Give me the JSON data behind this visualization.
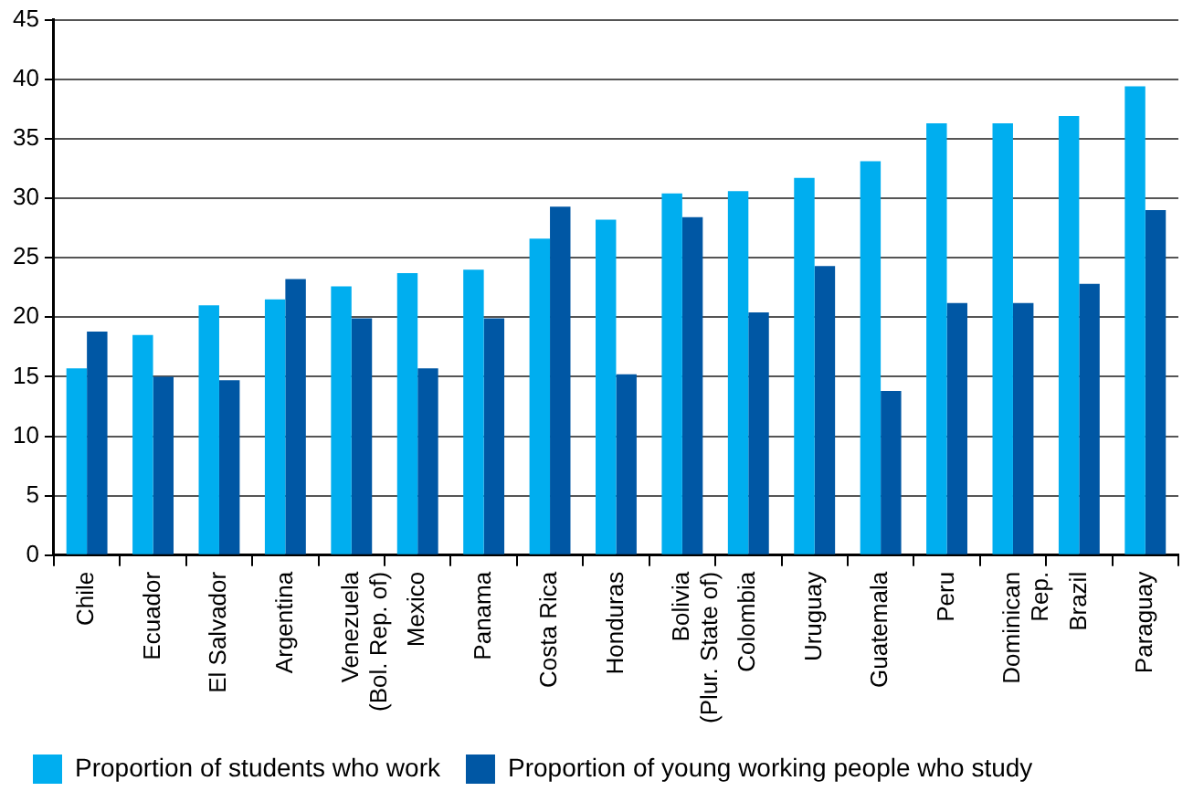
{
  "chart_data": {
    "type": "bar",
    "categories": [
      "Chile",
      "Ecuador",
      "El Salvador",
      "Argentina",
      "Venezuela\n(Bol. Rep. of)",
      "Mexico",
      "Panama",
      "Costa Rica",
      "Honduras",
      "Bolivia\n(Plur. State of)",
      "Colombia",
      "Uruguay",
      "Guatemala",
      "Peru",
      "Dominican\nRep.",
      "Brazil",
      "Paraguay"
    ],
    "series": [
      {
        "name": "Proportion of students who work",
        "color": "#00aeef",
        "values": [
          15.7,
          18.5,
          21.0,
          21.5,
          22.6,
          23.7,
          24.0,
          26.6,
          28.2,
          30.4,
          30.6,
          31.7,
          33.1,
          36.3,
          36.3,
          36.9,
          39.4
        ]
      },
      {
        "name": "Proportion of young working people who study",
        "color": "#0057a4",
        "values": [
          18.8,
          15.0,
          14.7,
          23.2,
          19.9,
          15.7,
          19.9,
          29.3,
          15.2,
          28.4,
          20.4,
          24.3,
          13.8,
          21.2,
          21.2,
          22.8,
          29.0
        ]
      }
    ],
    "ylim": [
      0,
      45
    ],
    "yticks": [
      0,
      5,
      10,
      15,
      20,
      25,
      30,
      35,
      40,
      45
    ],
    "grid": "y",
    "legend": "bottom"
  }
}
